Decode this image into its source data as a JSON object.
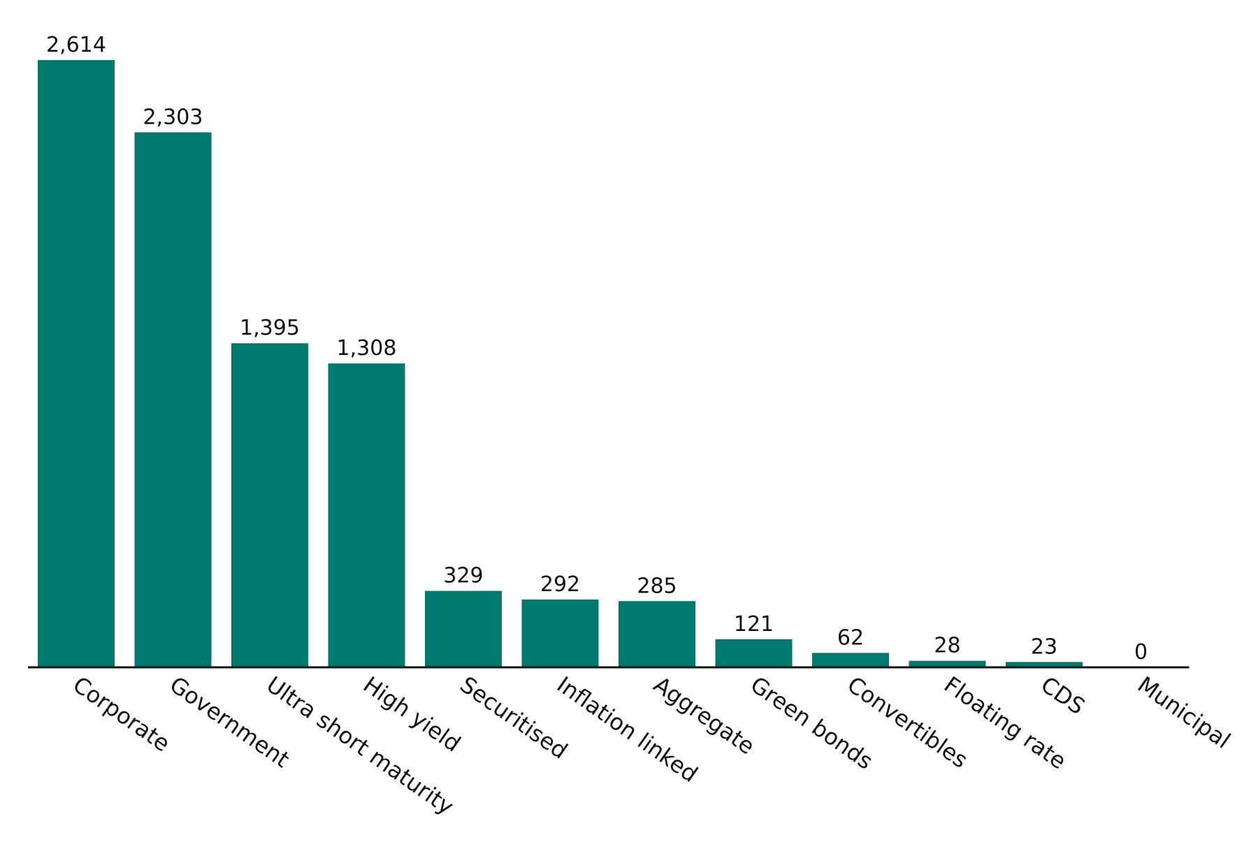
{
  "chart_data": {
    "type": "bar",
    "title": "",
    "xlabel": "",
    "ylabel": "",
    "categories": [
      "Corporate",
      "Government",
      "Ultra short maturity",
      "High yield",
      "Securitised",
      "Inflation linked",
      "Aggregate",
      "Green bonds",
      "Convertibles",
      "Floating rate",
      "CDS",
      "Municipal"
    ],
    "values": [
      2614,
      2303,
      1395,
      1308,
      329,
      292,
      285,
      121,
      62,
      28,
      23,
      0
    ],
    "value_labels": [
      "2,614",
      "2,303",
      "1,395",
      "1,308",
      "329",
      "292",
      "285",
      "121",
      "62",
      "28",
      "23",
      "0"
    ],
    "ylim": [
      0,
      2614
    ],
    "grid": false,
    "legend": "none",
    "bar_color": "#00796f",
    "baseline_color": "#111111",
    "label_rotation_deg": 35
  }
}
